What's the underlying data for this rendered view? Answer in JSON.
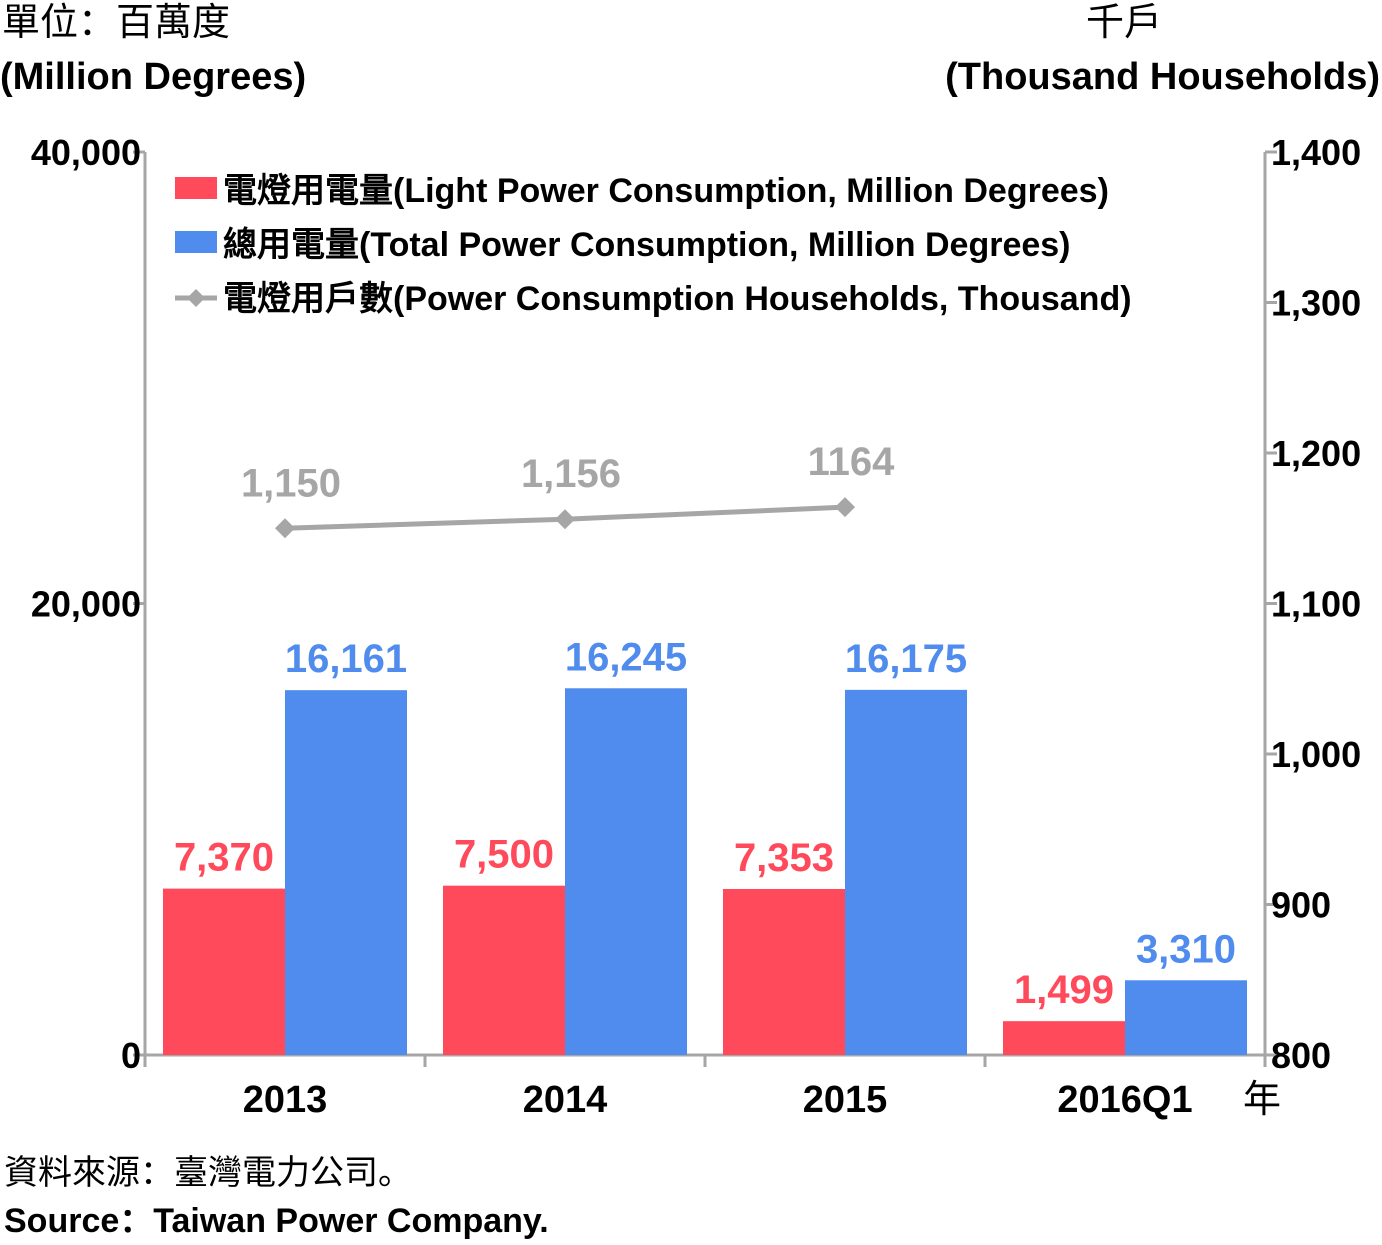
{
  "units": {
    "left_zh": "單位：百萬度",
    "left_en": "(Million Degrees)",
    "right_zh": "千戶",
    "right_en": "(Thousand Households)"
  },
  "year_unit": "年",
  "source": {
    "zh": "資料來源：臺灣電力公司。",
    "en": "Source：Taiwan Power Company."
  },
  "colors": {
    "light": "#ff4a5c",
    "total": "#508ced",
    "households": "#a6a6a6",
    "axis": "#a6a6a6"
  },
  "chart_data": {
    "type": "bar",
    "categories": [
      "2013",
      "2014",
      "2015",
      "2016Q1"
    ],
    "y_left": {
      "range": [
        0,
        40000
      ],
      "ticks": [
        0,
        20000,
        40000
      ],
      "tick_labels": [
        "0",
        "20,000",
        "40,000"
      ]
    },
    "y_right": {
      "range": [
        800,
        1400
      ],
      "ticks": [
        800,
        900,
        1000,
        1100,
        1200,
        1300,
        1400
      ],
      "tick_labels": [
        "800",
        "900",
        "1,000",
        "1,100",
        "1,200",
        "1,300",
        "1,400"
      ]
    },
    "series": [
      {
        "name": "電燈用電量(Light Power Consumption, Million Degrees)",
        "type": "bar",
        "axis": "left",
        "values": [
          7370,
          7500,
          7353,
          1499
        ],
        "labels": [
          "7,370",
          "7,500",
          "7,353",
          "1,499"
        ]
      },
      {
        "name": "總用電量(Total Power Consumption, Million Degrees)",
        "type": "bar",
        "axis": "left",
        "values": [
          16161,
          16245,
          16175,
          3310
        ],
        "labels": [
          "16,161",
          "16,245",
          "16,175",
          "3,310"
        ]
      },
      {
        "name": "電燈用戶數(Power Consumption Households, Thousand)",
        "type": "line",
        "axis": "right",
        "values": [
          1150,
          1156,
          1164,
          null
        ],
        "labels": [
          "1,150",
          "1,156",
          "1164",
          ""
        ]
      }
    ],
    "legend_position": "top-left",
    "grid": false
  }
}
